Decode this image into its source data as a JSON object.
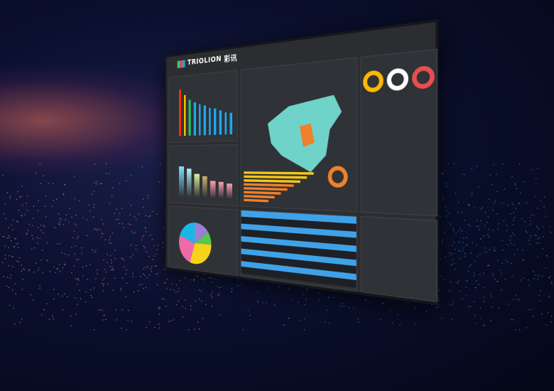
{
  "brand": {
    "name": "TRIOLION",
    "name_cn": "彩讯"
  },
  "colors": {
    "accent": "#3fa2e8",
    "background": "#0a0f2e",
    "panel": "#2b2d30"
  },
  "left_bar_chart": {
    "values": [
      100,
      87,
      76,
      70,
      66,
      62,
      57,
      55,
      50,
      46,
      43
    ],
    "colors": [
      "#f52d12",
      "#ffc000",
      "#22c55e",
      "#1ea7f0",
      "#1ea7f0",
      "#1ea7f0",
      "#1ea7f0",
      "#1ea7f0",
      "#1ea7f0",
      "#1ea7f0",
      "#1ea7f0"
    ]
  },
  "gradient_bars": {
    "values": [
      80,
      75,
      62,
      55,
      45,
      42,
      38
    ]
  },
  "pie": {
    "colors": [
      "#f7d21b",
      "#f06aa8",
      "#1bb5e8",
      "#9b7fd4",
      "#57c84d"
    ]
  },
  "rings": {
    "colors": [
      "#ffb800",
      "#ffffff",
      "#e94e4e"
    ]
  }
}
